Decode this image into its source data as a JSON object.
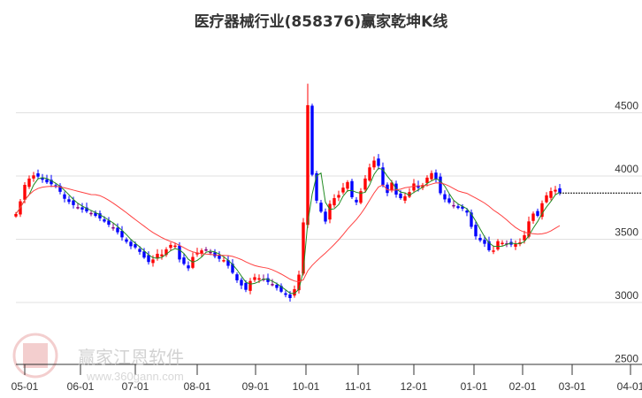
{
  "chart_data": {
    "type": "candlestick",
    "title": "医疗器械行业(858376)赢家乾坤K线",
    "ylim": [
      2500,
      4800
    ],
    "y_ticks": [
      2500,
      3000,
      3500,
      4000,
      4500
    ],
    "x_ticks": [
      {
        "label": "05-01",
        "pos": 2
      },
      {
        "label": "06-01",
        "pos": 14.6
      },
      {
        "label": "07-01",
        "pos": 27
      },
      {
        "label": "08-01",
        "pos": 41
      },
      {
        "label": "09-01",
        "pos": 54.2
      },
      {
        "label": "10-01",
        "pos": 65.6
      },
      {
        "label": "11-01",
        "pos": 77.4
      },
      {
        "label": "12-01",
        "pos": 90
      },
      {
        "label": "01-01",
        "pos": 103.6
      },
      {
        "label": "02-01",
        "pos": 114.6
      },
      {
        "label": "03-01",
        "pos": 125.8
      },
      {
        "label": "04-01",
        "pos": 139
      }
    ],
    "closes": [
      3700,
      3800,
      3930,
      3980,
      4005,
      3995,
      3970,
      3950,
      3935,
      3915,
      3875,
      3820,
      3795,
      3770,
      3752,
      3735,
      3720,
      3705,
      3685,
      3665,
      3640,
      3615,
      3595,
      3555,
      3515,
      3480,
      3445,
      3435,
      3400,
      3355,
      3320,
      3340,
      3385,
      3380,
      3420,
      3455,
      3450,
      3340,
      3305,
      3270,
      3360,
      3395,
      3412,
      3420,
      3400,
      3365,
      3345,
      3335,
      3290,
      3235,
      3175,
      3135,
      3100,
      3170,
      3200,
      3192,
      3180,
      3162,
      3140,
      3115,
      3085,
      3060,
      3035,
      3105,
      3220,
      3633,
      4560,
      4010,
      3805,
      3718,
      3640,
      3780,
      3825,
      3850,
      3908,
      3952,
      3832,
      3792,
      3880,
      3980,
      4068,
      4122,
      4080,
      3928,
      3866,
      3948,
      3853,
      3825,
      3840,
      3873,
      3941,
      3907,
      3929,
      3987,
      4023,
      3975,
      3864,
      3815,
      3790,
      3765,
      3747,
      3742,
      3711,
      3598,
      3523,
      3491,
      3464,
      3413,
      3411,
      3485,
      3472,
      3467,
      3457,
      3461,
      3475,
      3532,
      3641,
      3703,
      3685,
      3785,
      3847,
      3881,
      3891,
      3865
    ],
    "last_price": 3865,
    "colors": {
      "up": "#ff0000",
      "down": "#0000ff",
      "neutral": "#800080",
      "ma_short": "#228b22",
      "ma_long": "#ff4040",
      "grid": "#e0e0e0"
    }
  },
  "watermark": {
    "name": "赢家江恩软件",
    "url": "www.360gann.com",
    "seal": "江赢恩家"
  }
}
